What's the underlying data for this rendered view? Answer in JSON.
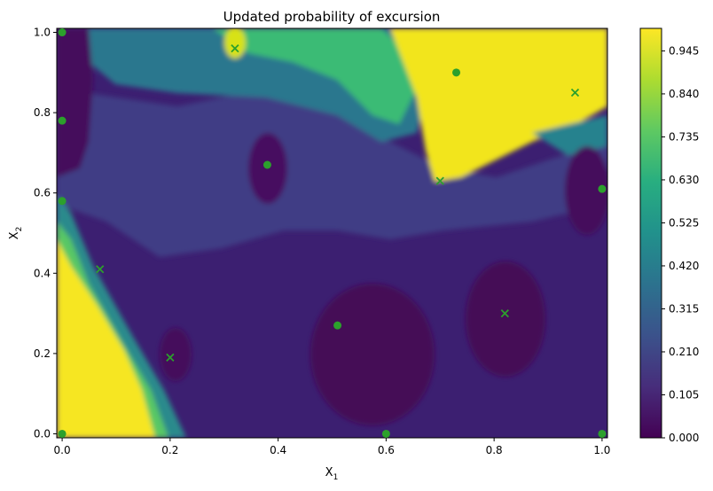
{
  "chart_data": {
    "type": "heatmap",
    "title": "Updated probability of excursion",
    "xlabel": {
      "base": "X",
      "sub": "1"
    },
    "ylabel": {
      "base": "X",
      "sub": "2"
    },
    "xlim": [
      -0.01,
      1.01
    ],
    "ylim": [
      -0.01,
      1.01
    ],
    "x_ticks": [
      "0.0",
      "0.2",
      "0.4",
      "0.6",
      "0.8",
      "1.0"
    ],
    "y_ticks": [
      "0.0",
      "0.2",
      "0.4",
      "0.6",
      "0.8",
      "1.0"
    ],
    "colorbar": {
      "range": [
        0,
        1
      ],
      "ticks": [
        "0.000",
        "0.105",
        "0.210",
        "0.315",
        "0.420",
        "0.525",
        "0.630",
        "0.735",
        "0.840",
        "0.945"
      ],
      "colormap": "viridis"
    },
    "grid": false,
    "observed_points": {
      "marker": "circle",
      "color": "#2ca02c",
      "x": [
        0.0,
        0.0,
        0.0,
        0.38,
        0.73,
        1.0,
        0.51,
        0.6,
        1.0,
        0.0
      ],
      "y": [
        1.0,
        0.78,
        0.58,
        0.67,
        0.9,
        0.61,
        0.27,
        0.0,
        0.0,
        0.0
      ]
    },
    "new_points": {
      "marker": "x",
      "color": "#2ca02c",
      "x": [
        0.32,
        0.95,
        0.7,
        0.07,
        0.2,
        0.82
      ],
      "y": [
        0.96,
        0.85,
        0.63,
        0.41,
        0.19,
        0.3
      ]
    }
  }
}
